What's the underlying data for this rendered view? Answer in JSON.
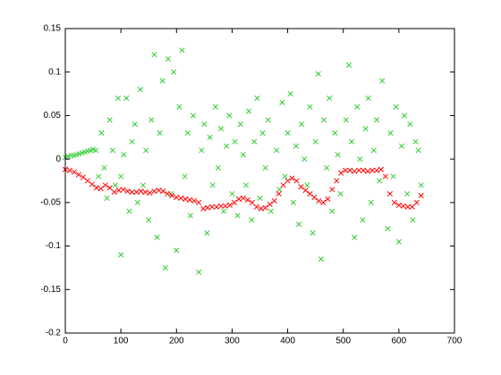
{
  "chart_data": {
    "type": "scatter",
    "marker": "x",
    "xlim": [
      0,
      700
    ],
    "xticks": [
      0,
      100,
      200,
      300,
      400,
      500,
      600,
      700
    ],
    "ylim": [
      -0.2,
      0.15
    ],
    "yticks": [
      -0.2,
      -0.15,
      -0.1,
      -0.05,
      0,
      0.05,
      0.1,
      0.15
    ],
    "grid": false,
    "series": [
      {
        "color": "#33cc33",
        "x": [
          0,
          5,
          10,
          15,
          20,
          25,
          30,
          35,
          40,
          45,
          50,
          55,
          60,
          65,
          70,
          75,
          80,
          85,
          90,
          95,
          100,
          100,
          105,
          110,
          115,
          120,
          125,
          130,
          135,
          140,
          145,
          150,
          155,
          160,
          165,
          170,
          175,
          180,
          185,
          190,
          195,
          200,
          205,
          210,
          215,
          220,
          225,
          230,
          240,
          245,
          250,
          255,
          260,
          265,
          270,
          275,
          280,
          285,
          290,
          295,
          300,
          305,
          310,
          315,
          320,
          325,
          330,
          335,
          340,
          345,
          350,
          355,
          360,
          365,
          370,
          380,
          385,
          390,
          395,
          400,
          405,
          410,
          415,
          420,
          425,
          430,
          435,
          440,
          445,
          450,
          455,
          460,
          465,
          470,
          475,
          480,
          485,
          490,
          495,
          505,
          510,
          515,
          520,
          525,
          530,
          535,
          540,
          545,
          550,
          555,
          560,
          565,
          570,
          580,
          585,
          590,
          595,
          600,
          605,
          610,
          615,
          620,
          625,
          630,
          635,
          640
        ],
        "values": [
          0.002,
          0.003,
          0.004,
          0.004,
          0.005,
          0.006,
          0.007,
          0.008,
          0.009,
          0.01,
          0.011,
          0.01,
          -0.02,
          0.03,
          -0.01,
          -0.045,
          0.045,
          0.01,
          -0.03,
          0.07,
          -0.02,
          -0.11,
          0.005,
          0.07,
          -0.06,
          0.02,
          0.04,
          -0.05,
          0.08,
          -0.03,
          0.01,
          -0.07,
          0.045,
          0.12,
          -0.09,
          0.03,
          0.09,
          -0.125,
          0.115,
          -0.04,
          0.1,
          -0.105,
          0.06,
          0.125,
          -0.02,
          0.03,
          -0.065,
          0.05,
          -0.13,
          0.01,
          0.04,
          -0.085,
          0.025,
          -0.03,
          0.06,
          -0.01,
          0.035,
          -0.06,
          0.015,
          0.05,
          -0.04,
          0.02,
          -0.065,
          0.04,
          0.005,
          -0.03,
          0.055,
          -0.07,
          0.02,
          0.07,
          -0.045,
          0.03,
          -0.01,
          0.045,
          -0.06,
          0.01,
          -0.035,
          0.065,
          -0.02,
          0.03,
          0.075,
          -0.05,
          0.015,
          -0.075,
          0.04,
          0,
          -0.03,
          0.06,
          -0.085,
          0.02,
          0.098,
          -0.115,
          0.045,
          -0.01,
          0.07,
          -0.06,
          0.03,
          0.005,
          -0.04,
          0.045,
          0.108,
          0.02,
          -0.09,
          0.06,
          0,
          -0.07,
          0.035,
          0.07,
          -0.05,
          0.01,
          0.045,
          -0.025,
          0.09,
          -0.08,
          0.03,
          -0.02,
          0.06,
          -0.095,
          0.015,
          0.05,
          -0.04,
          0.04,
          -0.07,
          0.02,
          0.01,
          -0.03
        ]
      },
      {
        "color": "#ff0000",
        "x": [
          0,
          8,
          16,
          24,
          32,
          40,
          48,
          56,
          64,
          72,
          80,
          88,
          96,
          104,
          112,
          120,
          128,
          136,
          144,
          152,
          160,
          168,
          176,
          184,
          192,
          200,
          208,
          216,
          224,
          232,
          240,
          248,
          256,
          264,
          272,
          280,
          288,
          296,
          304,
          312,
          320,
          328,
          336,
          344,
          352,
          360,
          368,
          376,
          384,
          392,
          400,
          408,
          416,
          424,
          432,
          440,
          448,
          456,
          464,
          472,
          480,
          488,
          496,
          504,
          512,
          520,
          528,
          536,
          544,
          552,
          560,
          568,
          576,
          584,
          592,
          600,
          608,
          616,
          624,
          632,
          640
        ],
        "values": [
          -0.012,
          -0.013,
          -0.015,
          -0.018,
          -0.021,
          -0.025,
          -0.029,
          -0.033,
          -0.034,
          -0.03,
          -0.033,
          -0.038,
          -0.036,
          -0.035,
          -0.037,
          -0.038,
          -0.038,
          -0.037,
          -0.038,
          -0.039,
          -0.037,
          -0.036,
          -0.037,
          -0.04,
          -0.042,
          -0.044,
          -0.045,
          -0.046,
          -0.047,
          -0.048,
          -0.05,
          -0.057,
          -0.056,
          -0.055,
          -0.055,
          -0.054,
          -0.054,
          -0.053,
          -0.05,
          -0.046,
          -0.045,
          -0.047,
          -0.05,
          -0.055,
          -0.057,
          -0.056,
          -0.052,
          -0.048,
          -0.04,
          -0.03,
          -0.025,
          -0.022,
          -0.025,
          -0.032,
          -0.036,
          -0.04,
          -0.044,
          -0.048,
          -0.05,
          -0.046,
          -0.035,
          -0.025,
          -0.016,
          -0.013,
          -0.013,
          -0.014,
          -0.013,
          -0.013,
          -0.014,
          -0.013,
          -0.013,
          -0.012,
          -0.02,
          -0.04,
          -0.05,
          -0.053,
          -0.054,
          -0.055,
          -0.055,
          -0.05,
          -0.042
        ]
      }
    ]
  }
}
